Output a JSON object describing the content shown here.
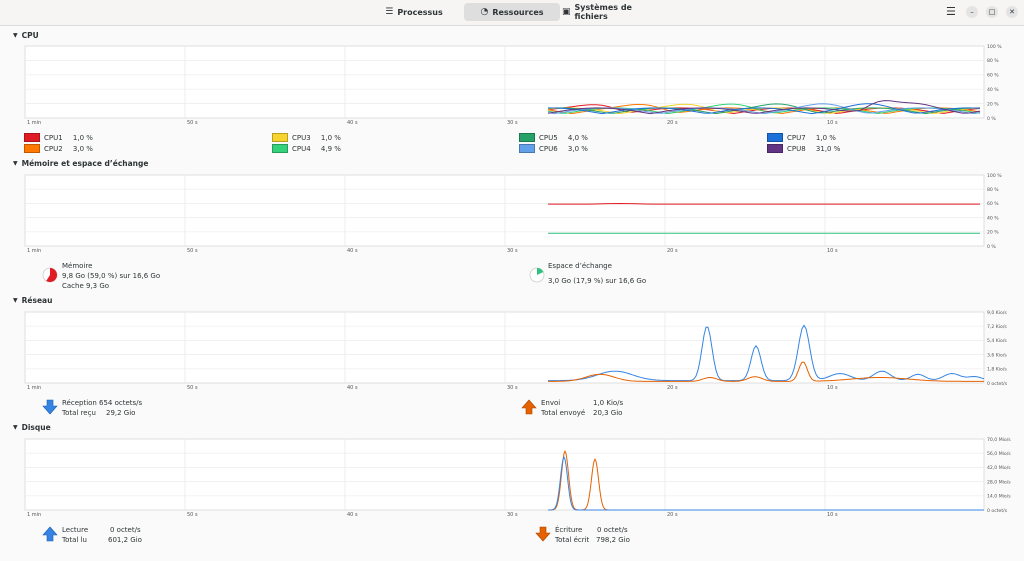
{
  "header": {
    "tabs": [
      {
        "label": "Processus",
        "icon": "list-icon"
      },
      {
        "label": "Ressources",
        "icon": "gauge-icon",
        "active": true
      },
      {
        "label": "Systèmes de fichiers",
        "icon": "disk-icon"
      }
    ],
    "menu_icon": "hamburger-menu-icon",
    "window_buttons": [
      "minimize-icon",
      "maximize-icon",
      "close-icon"
    ]
  },
  "x_ticks": [
    "1 min",
    "50 s",
    "40 s",
    "30 s",
    "20 s",
    "10 s"
  ],
  "cpu": {
    "title": "CPU",
    "y_ticks": [
      "100 %",
      "80 %",
      "60 %",
      "40 %",
      "20 %",
      "0 %"
    ],
    "cores": [
      {
        "name": "CPU1",
        "value": "1,0 %",
        "color": "#e01b24"
      },
      {
        "name": "CPU2",
        "value": "3,0 %",
        "color": "#ff7800"
      },
      {
        "name": "CPU3",
        "value": "1,0 %",
        "color": "#f6d32d"
      },
      {
        "name": "CPU4",
        "value": "4,9 %",
        "color": "#33d17a"
      },
      {
        "name": "CPU5",
        "value": "4,0 %",
        "color": "#26a269"
      },
      {
        "name": "CPU6",
        "value": "3,0 %",
        "color": "#62a0ea"
      },
      {
        "name": "CPU7",
        "value": "1,0 %",
        "color": "#1c71d8"
      },
      {
        "name": "CPU8",
        "value": "31,0 %",
        "color": "#613583"
      }
    ]
  },
  "memory": {
    "title": "Mémoire et espace d’échange",
    "y_ticks": [
      "100 %",
      "80 %",
      "60 %",
      "40 %",
      "20 %",
      "0 %"
    ],
    "mem_label": "Mémoire",
    "mem_value": "9,8 Go (59,0 %) sur 16,6 Go",
    "cache": "Cache 9,3 Go",
    "mem_color": "#e01b24",
    "mem_percent": 59.0,
    "swap_label": "Espace d’échange",
    "swap_value": "3,0 Go (17,9 %) sur 16,6 Go",
    "swap_color": "#2ec27e",
    "swap_percent": 17.9
  },
  "network": {
    "title": "Réseau",
    "y_ticks": [
      "9,0 Kio/s",
      "7,2 Kio/s",
      "5,4 Kio/s",
      "3,6 Kio/s",
      "1,8 Kio/s",
      "0 octet/s"
    ],
    "rx_label": "Réception",
    "rx_value": "654 octets/s",
    "rx_total_label": "Total reçu",
    "rx_total": "29,2 Gio",
    "rx_color": "#3584e4",
    "tx_label": "Envoi",
    "tx_value": "1,0 Kio/s",
    "tx_total_label": "Total envoyé",
    "tx_total": "20,3 Gio",
    "tx_color": "#e66100"
  },
  "disk": {
    "title": "Disque",
    "y_ticks": [
      "70,0 Mio/s",
      "56,0 Mio/s",
      "42,0 Mio/s",
      "28,0 Mio/s",
      "14,0 Mio/s",
      "0 octet/s"
    ],
    "read_label": "Lecture",
    "read_value": "0 octet/s",
    "read_total_label": "Total lu",
    "read_total": "601,2 Gio",
    "read_color": "#3584e4",
    "write_label": "Écriture",
    "write_value": "0 octet/s",
    "write_total_label": "Total écrit",
    "write_total": "798,2 Gio",
    "write_color": "#e66100"
  }
}
